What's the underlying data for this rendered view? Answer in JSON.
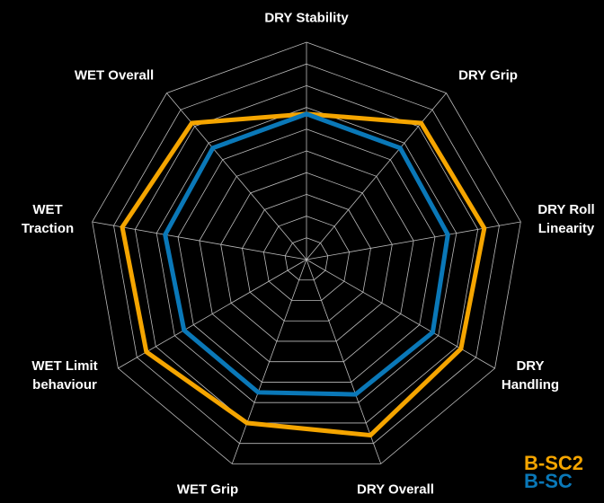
{
  "chart_data": {
    "type": "radar",
    "categories": [
      "DRY Stability",
      "DRY Grip",
      "DRY Roll Linearity",
      "DRY Handling",
      "DRY Overall",
      "WET Grip",
      "WET Limit behaviour",
      "WET Traction",
      "WET Overall"
    ],
    "series": [
      {
        "name": "B-SC2",
        "color": "#f5a500",
        "values": [
          6.7,
          8.2,
          8.3,
          8.2,
          8.6,
          8.0,
          8.5,
          8.6,
          8.2
        ]
      },
      {
        "name": "B-SC",
        "color": "#0a78b8",
        "values": [
          6.7,
          6.7,
          6.6,
          6.7,
          6.6,
          6.5,
          6.5,
          6.6,
          6.7
        ]
      }
    ],
    "rlim": [
      0,
      10
    ],
    "rticks": [
      1,
      2,
      3,
      4,
      5,
      6,
      7,
      8,
      9,
      10
    ],
    "grid": true,
    "legend": "lower right"
  }
}
